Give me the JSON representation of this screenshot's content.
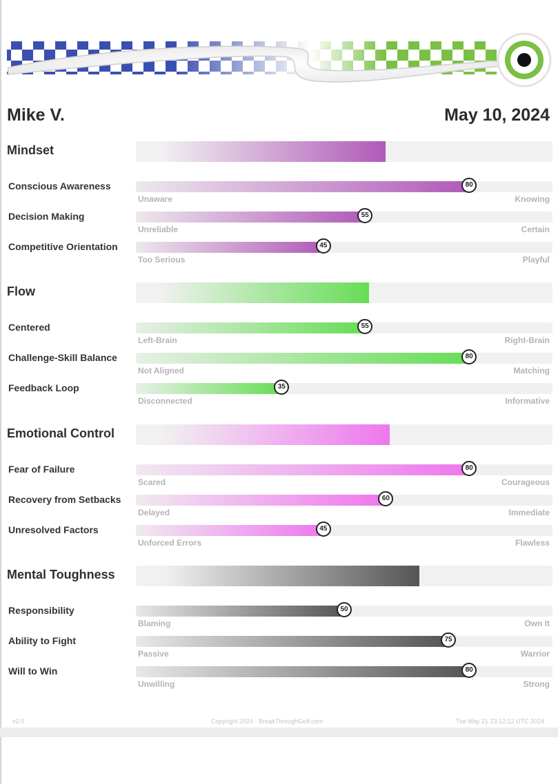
{
  "profile": {
    "name": "Mike V.",
    "date": "May 10, 2024"
  },
  "colors": {
    "brand_blue": "#3a4fb0",
    "brand_green": "#7bbf44"
  },
  "categories": [
    {
      "id": "mindset",
      "title": "Mindset",
      "value": 60,
      "color": "#b05ab8",
      "items": [
        {
          "label": "Conscious Awareness",
          "value": 80,
          "low": "Unaware",
          "high": "Knowing"
        },
        {
          "label": "Decision Making",
          "value": 55,
          "low": "Unreliable",
          "high": "Certain"
        },
        {
          "label": "Competitive Orientation",
          "value": 45,
          "low": "Too Serious",
          "high": "Playful"
        }
      ]
    },
    {
      "id": "flow",
      "title": "Flow",
      "value": 56,
      "color": "#66dd55",
      "items": [
        {
          "label": "Centered",
          "value": 55,
          "low": "Left-Brain",
          "high": "Right-Brain"
        },
        {
          "label": "Challenge-Skill Balance",
          "value": 80,
          "low": "Not Aligned",
          "high": "Matching"
        },
        {
          "label": "Feedback Loop",
          "value": 35,
          "low": "Disconnected",
          "high": "Informative"
        }
      ]
    },
    {
      "id": "emotional-control",
      "title": "Emotional Control",
      "value": 61,
      "color": "#ee77ee",
      "items": [
        {
          "label": "Fear of Failure",
          "value": 80,
          "low": "Scared",
          "high": "Courageous"
        },
        {
          "label": "Recovery from Setbacks",
          "value": 60,
          "low": "Delayed",
          "high": "Immediate"
        },
        {
          "label": "Unresolved Factors",
          "value": 45,
          "low": "Unforced Errors",
          "high": "Flawless"
        }
      ]
    },
    {
      "id": "mental-toughness",
      "title": "Mental Toughness",
      "value": 68,
      "color": "#555555",
      "items": [
        {
          "label": "Responsibility",
          "value": 50,
          "low": "Blaming",
          "high": "Own It"
        },
        {
          "label": "Ability to Fight",
          "value": 75,
          "low": "Passive",
          "high": "Warrior"
        },
        {
          "label": "Will to Win",
          "value": 80,
          "low": "Unwilling",
          "high": "Strong"
        }
      ]
    }
  ],
  "footer": {
    "version": "v2.0",
    "copyright": "Copyright 2024 - BreakThroughGolf.com",
    "timestamp": "Tue May 21 23:12:12 UTC 2024"
  }
}
